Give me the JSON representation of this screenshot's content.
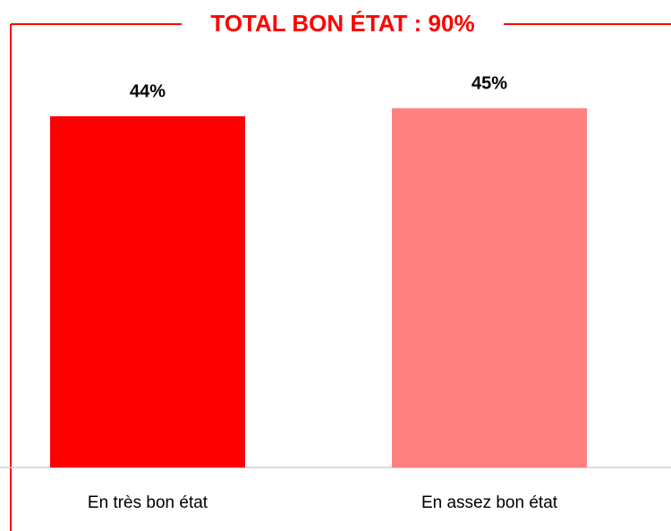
{
  "chart_data": {
    "type": "bar",
    "title": "TOTAL BON ÉTAT : 90%",
    "categories": [
      "En très bon état",
      "En assez bon état"
    ],
    "values": [
      44,
      45
    ],
    "value_labels": [
      "44%",
      "45%"
    ],
    "colors": [
      "#ff0000",
      "#ff8080"
    ]
  }
}
